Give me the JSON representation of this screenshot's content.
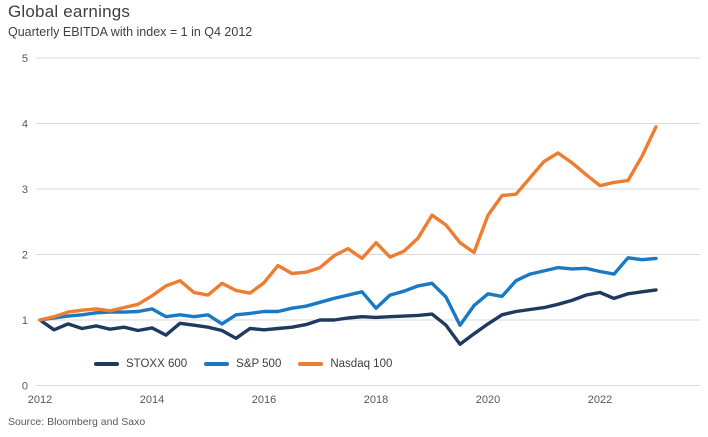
{
  "header": {
    "title": "Global earnings",
    "subtitle": "Quarterly EBITDA with index = 1 in Q4 2012"
  },
  "footer": {
    "source": "Source: Bloomberg and Saxo"
  },
  "palette": {
    "grid": "#d9d9d9",
    "axis_text": "#595959",
    "text": "#404040",
    "background": "#ffffff"
  },
  "chart_data": {
    "type": "line",
    "title": "Global earnings",
    "subtitle": "Quarterly EBITDA with index = 1 in Q4 2012",
    "xlabel": "",
    "ylabel": "",
    "ylim": [
      0,
      5
    ],
    "y_ticks": [
      0,
      1,
      2,
      3,
      4,
      5
    ],
    "grid": true,
    "legend_position": "bottom-left",
    "x_unit": "quarter",
    "x_tick_labels": [
      "2012",
      "2014",
      "2016",
      "2018",
      "2020",
      "2022"
    ],
    "x_tick_indices": [
      0,
      8,
      16,
      24,
      32,
      40
    ],
    "categories": [
      "Q4 2012",
      "Q1 2013",
      "Q2 2013",
      "Q3 2013",
      "Q4 2013",
      "Q1 2014",
      "Q2 2014",
      "Q3 2014",
      "Q4 2014",
      "Q1 2015",
      "Q2 2015",
      "Q3 2015",
      "Q4 2015",
      "Q1 2016",
      "Q2 2016",
      "Q3 2016",
      "Q4 2016",
      "Q1 2017",
      "Q2 2017",
      "Q3 2017",
      "Q4 2017",
      "Q1 2018",
      "Q2 2018",
      "Q3 2018",
      "Q4 2018",
      "Q1 2019",
      "Q2 2019",
      "Q3 2019",
      "Q4 2019",
      "Q1 2020",
      "Q2 2020",
      "Q3 2020",
      "Q4 2020",
      "Q1 2021",
      "Q2 2021",
      "Q3 2021",
      "Q4 2021",
      "Q1 2022",
      "Q2 2022",
      "Q3 2022",
      "Q4 2022",
      "Q1 2023",
      "Q2 2023",
      "Q3 2023",
      "Q4 2023"
    ],
    "series": [
      {
        "name": "STOXX 600",
        "color": "#1f3a60",
        "values": [
          1.0,
          0.85,
          0.94,
          0.87,
          0.91,
          0.86,
          0.89,
          0.84,
          0.88,
          0.77,
          0.95,
          0.92,
          0.89,
          0.84,
          0.72,
          0.87,
          0.85,
          0.87,
          0.89,
          0.93,
          1.0,
          1.0,
          1.03,
          1.05,
          1.04,
          1.05,
          1.06,
          1.07,
          1.09,
          0.92,
          0.63,
          0.79,
          0.94,
          1.08,
          1.13,
          1.16,
          1.19,
          1.24,
          1.3,
          1.38,
          1.42,
          1.33,
          1.4,
          1.43,
          1.46
        ]
      },
      {
        "name": "S&P 500",
        "color": "#1b79c4",
        "values": [
          1.0,
          1.03,
          1.06,
          1.08,
          1.11,
          1.12,
          1.12,
          1.13,
          1.17,
          1.05,
          1.08,
          1.05,
          1.08,
          0.94,
          1.08,
          1.1,
          1.13,
          1.13,
          1.18,
          1.21,
          1.27,
          1.33,
          1.38,
          1.43,
          1.18,
          1.38,
          1.44,
          1.52,
          1.56,
          1.35,
          0.92,
          1.22,
          1.4,
          1.36,
          1.6,
          1.7,
          1.75,
          1.8,
          1.78,
          1.79,
          1.74,
          1.7,
          1.95,
          1.92,
          1.94
        ]
      },
      {
        "name": "Nasdaq 100",
        "color": "#ee7d31",
        "values": [
          1.0,
          1.05,
          1.12,
          1.15,
          1.17,
          1.14,
          1.19,
          1.24,
          1.37,
          1.52,
          1.6,
          1.42,
          1.38,
          1.56,
          1.45,
          1.41,
          1.57,
          1.83,
          1.71,
          1.73,
          1.8,
          1.98,
          2.09,
          1.94,
          2.18,
          1.96,
          2.05,
          2.25,
          2.6,
          2.45,
          2.18,
          2.03,
          2.6,
          2.9,
          2.92,
          3.17,
          3.42,
          3.55,
          3.4,
          3.22,
          3.05,
          3.1,
          3.13,
          3.5,
          3.95
        ]
      }
    ]
  }
}
